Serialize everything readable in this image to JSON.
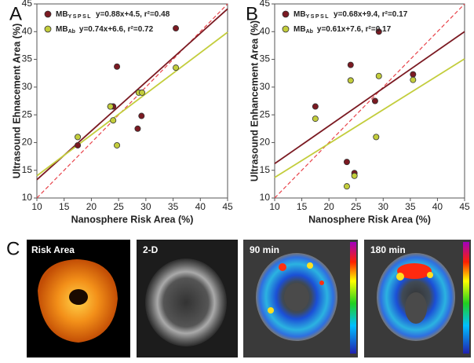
{
  "chart_data": [
    {
      "type": "scatter",
      "panel": "A",
      "x_label": "Nanosphere Risk Area (%)",
      "y_label": "Ultrasound Ehnacement Area (%)",
      "xlim": [
        10,
        45
      ],
      "xticks": [
        10,
        15,
        20,
        25,
        30,
        35,
        40,
        45
      ],
      "ylim": [
        10,
        45
      ],
      "yticks": [
        10,
        15,
        20,
        25,
        30,
        35,
        40,
        45
      ],
      "identity": {
        "color": "#e8434a",
        "x": [
          10,
          45
        ],
        "values": [
          10,
          45
        ]
      },
      "series": [
        {
          "name": "MB",
          "name_sub": "YSPSL",
          "equation": "y=0.88x+4.5, r²=0.48",
          "color": "#7b1a22",
          "x": [
            17.5,
            23.5,
            24,
            24.7,
            28.5,
            29.2,
            35.5
          ],
          "values": [
            19.5,
            26.5,
            26.5,
            33.7,
            22.5,
            24.8,
            40.6
          ],
          "fit": {
            "x": [
              10,
              45
            ],
            "values": [
              13.3,
              44.1
            ]
          }
        },
        {
          "name": "MB",
          "name_sub": "Ab",
          "equation": "y=0.74x+6.6, r²=0.72",
          "color": "#c3cd3c",
          "x": [
            17.5,
            23.5,
            24,
            24.7,
            28.7,
            29.3,
            35.5
          ],
          "values": [
            21,
            26.5,
            24,
            19.5,
            29,
            29,
            33.5
          ],
          "fit": {
            "x": [
              10,
              45
            ],
            "values": [
              14,
              39.9
            ]
          }
        }
      ]
    },
    {
      "type": "scatter",
      "panel": "B",
      "x_label": "Nanosphere Risk Area (%)",
      "y_label": "Ultrasound Enhancement Area (%)",
      "xlim": [
        10,
        45
      ],
      "xticks": [
        10,
        15,
        20,
        25,
        30,
        35,
        40,
        45
      ],
      "ylim": [
        10,
        45
      ],
      "yticks": [
        10,
        15,
        20,
        25,
        30,
        35,
        40,
        45
      ],
      "identity": {
        "color": "#e8434a",
        "x": [
          10,
          45
        ],
        "values": [
          10,
          45
        ]
      },
      "series": [
        {
          "name": "MB",
          "name_sub": "YSPSL",
          "equation": "y=0.68x+9.4, r²=0.17",
          "color": "#7b1a22",
          "x": [
            17.5,
            23.3,
            24,
            24.7,
            28.5,
            29.2,
            35.5
          ],
          "values": [
            26.5,
            16.5,
            34,
            14.5,
            27.5,
            40,
            32.3
          ],
          "fit": {
            "x": [
              10,
              45
            ],
            "values": [
              16.2,
              40
            ]
          }
        },
        {
          "name": "MB",
          "name_sub": "Ab",
          "equation": "y=0.61x+7.6, r²=0.17",
          "color": "#c3cd3c",
          "x": [
            17.5,
            23.3,
            24,
            24.7,
            28.7,
            29.2,
            35.5
          ],
          "values": [
            24.3,
            12.1,
            31.2,
            14,
            21,
            32,
            31.3
          ],
          "fit": {
            "x": [
              10,
              45
            ],
            "values": [
              13.7,
              35.1
            ]
          }
        }
      ]
    }
  ],
  "panel_c": {
    "panel": "C",
    "images": [
      {
        "label": "Risk Area"
      },
      {
        "label": "2-D"
      },
      {
        "label": "90 min"
      },
      {
        "label": "180 min"
      }
    ]
  }
}
